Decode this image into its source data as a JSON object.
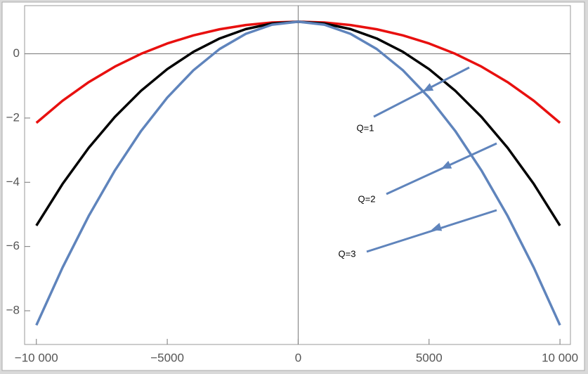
{
  "chart_data": {
    "type": "line",
    "x": [
      -10000,
      -9000,
      -8000,
      -7000,
      -6000,
      -5000,
      -4000,
      -3000,
      -2000,
      -1000,
      0,
      1000,
      2000,
      3000,
      4000,
      5000,
      6000,
      7000,
      8000,
      9000,
      10000
    ],
    "series": [
      {
        "color": "#e8100f",
        "values": [
          -2.15,
          -1.462,
          -0.882,
          -0.398,
          0,
          0.322,
          0.574,
          0.764,
          0.896,
          0.974,
          1,
          0.974,
          0.896,
          0.764,
          0.574,
          0.322,
          0,
          -0.398,
          -0.882,
          -1.462,
          -2.15
        ]
      },
      {
        "color": "#000000",
        "values": [
          -5.35,
          -4.052,
          -2.927,
          -1.963,
          -1.15,
          -0.477,
          0.063,
          0.477,
          0.769,
          0.942,
          1,
          0.942,
          0.769,
          0.477,
          0.063,
          -0.477,
          -1.15,
          -1.963,
          -2.927,
          -4.052,
          -5.35
        ]
      },
      {
        "color": "#5f84bc",
        "values": [
          -8.45,
          -6.655,
          -5.048,
          -3.631,
          -2.402,
          -1.363,
          -0.512,
          0.15,
          0.622,
          0.906,
          1,
          0.906,
          0.622,
          0.15,
          -0.512,
          -1.363,
          -2.402,
          -3.631,
          -5.048,
          -6.655,
          -8.45
        ]
      }
    ],
    "xlim": [
      -10450,
      10400
    ],
    "ylim": [
      -9.05,
      1.5
    ],
    "xticks": [
      {
        "value": -10000,
        "label": "−10 000"
      },
      {
        "value": -5000,
        "label": "−5000"
      },
      0,
      5000,
      {
        "value": 10000,
        "label": "10 000"
      }
    ],
    "yticks": [
      {
        "value": -8,
        "label": "−8"
      },
      {
        "value": -6,
        "label": "−6"
      },
      {
        "value": -4,
        "label": "−4"
      },
      {
        "value": -2,
        "label": "−2"
      },
      0
    ],
    "annotations": [
      "Q=1",
      "Q=2",
      "Q=3"
    ]
  }
}
